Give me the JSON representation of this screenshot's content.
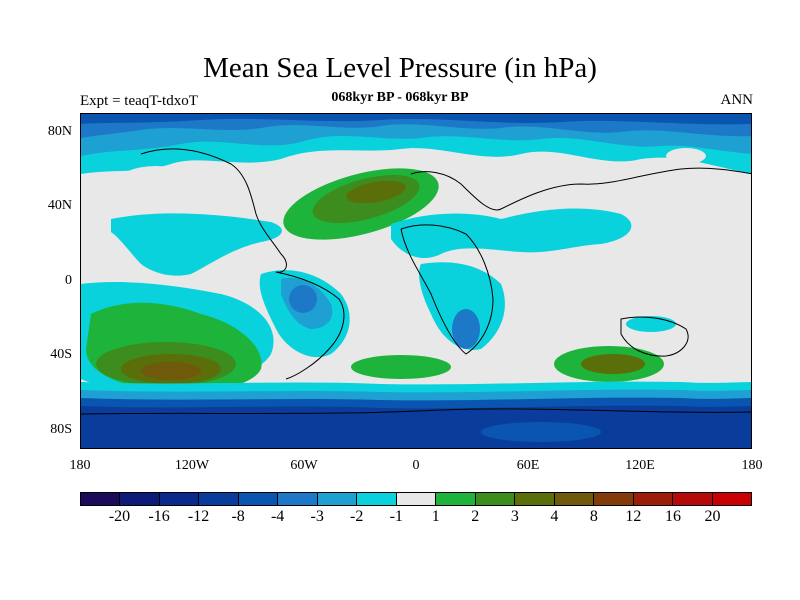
{
  "title": "Mean Sea Level Pressure (in hPa)",
  "subtitle": "068kyr BP - 068kyr BP",
  "left_string": "Expt = teaqT-tdxoT",
  "right_string": "ANN",
  "lat_labels": [
    "80N",
    "40N",
    "0",
    "40S",
    "80S"
  ],
  "lon_labels": [
    "180",
    "120W",
    "60W",
    "0",
    "60E",
    "120E",
    "180"
  ],
  "colorbar": {
    "colors": [
      "#1c0a5a",
      "#0d1a78",
      "#0a2a8c",
      "#0a3c9c",
      "#0a55b0",
      "#1e78c8",
      "#1ea0d2",
      "#0ad2dc",
      "#e8e8e8",
      "#1eb43c",
      "#3c8c1e",
      "#5a6e0a",
      "#6e5a0a",
      "#823c0a",
      "#9a1e0a",
      "#b40a0a",
      "#c80000"
    ],
    "labels": [
      "-20",
      "-16",
      "-12",
      "-8",
      "-4",
      "-3",
      "-2",
      "-1",
      "1",
      "2",
      "3",
      "4",
      "8",
      "12",
      "16",
      "20"
    ]
  },
  "colors": {
    "background_field": "#e8e8e8",
    "neg_weak": "#0ad2dc",
    "neg_mid": "#1ea0d2",
    "neg_strong": "#1e78c8",
    "neg_deep": "#0a55b0",
    "neg_deeper": "#0a3c9c",
    "pos_weak": "#1eb43c",
    "pos_mid": "#3c8c1e",
    "pos_strong": "#5a6e0a",
    "pos_peak": "#6e5a0a"
  }
}
